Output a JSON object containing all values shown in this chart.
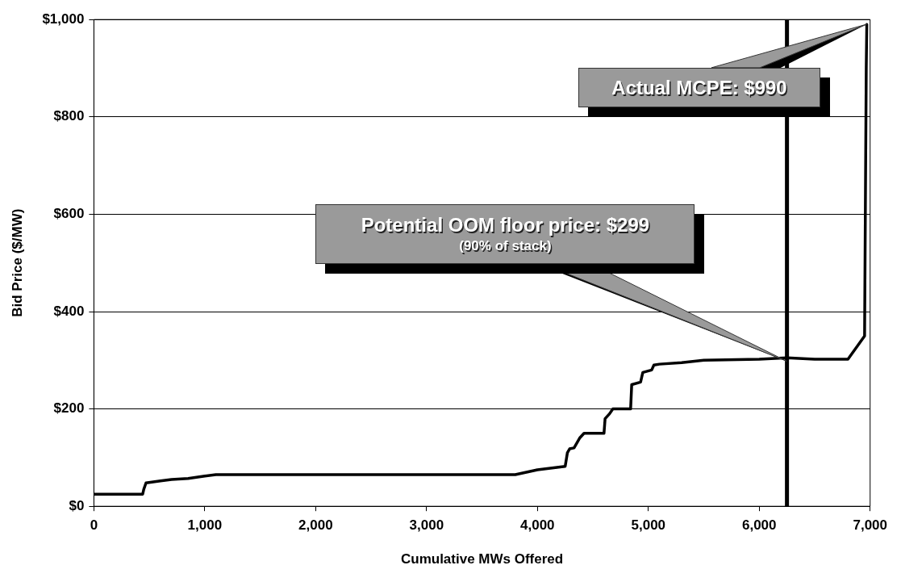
{
  "chart_data": {
    "type": "line",
    "xlabel": "Cumulative MWs Offered",
    "ylabel": "Bid Price ($/MW)",
    "series": [
      {
        "color": "#000000",
        "x": [
          0,
          440,
          450,
          470,
          600,
          700,
          850,
          1000,
          1100,
          1500,
          2500,
          3800,
          4000,
          4250,
          4270,
          4290,
          4330,
          4380,
          4420,
          4600,
          4610,
          4650,
          4680,
          4840,
          4850,
          4930,
          4950,
          5030,
          5050,
          5100,
          5300,
          5500,
          6000,
          6250,
          6500,
          6800,
          6950,
          6965,
          6970
        ],
        "values": [
          25,
          25,
          35,
          48,
          52,
          55,
          57,
          62,
          65,
          65,
          65,
          65,
          75,
          82,
          110,
          118,
          120,
          140,
          150,
          150,
          180,
          190,
          200,
          200,
          250,
          255,
          275,
          280,
          290,
          292,
          295,
          300,
          302,
          305,
          302,
          302,
          350,
          900,
          990
        ]
      }
    ],
    "xlim": [
      0,
      7000
    ],
    "xticks": [
      {
        "value": 0,
        "label": "0"
      },
      {
        "value": 1000,
        "label": "1,000"
      },
      {
        "value": 2000,
        "label": "2,000"
      },
      {
        "value": 3000,
        "label": "3,000"
      },
      {
        "value": 4000,
        "label": "4,000"
      },
      {
        "value": 5000,
        "label": "5,000"
      },
      {
        "value": 6000,
        "label": "6,000"
      },
      {
        "value": 7000,
        "label": "7,000"
      }
    ],
    "ylim": [
      0,
      1000
    ],
    "yticks": [
      {
        "value": 0,
        "label": "$0"
      },
      {
        "value": 200,
        "label": "$200"
      },
      {
        "value": 400,
        "label": "$400"
      },
      {
        "value": 600,
        "label": "$600"
      },
      {
        "value": 800,
        "label": "$800"
      },
      {
        "value": 1000,
        "label": "$1,000"
      }
    ],
    "grid": "y",
    "legend": false,
    "marker": "none",
    "line_style": "solid",
    "ref_lines": [
      {
        "axis": "x",
        "value": 6250,
        "color": "#000000"
      }
    ],
    "annotations": [
      {
        "text": "Actual MCPE: $990",
        "x": 6970,
        "y": 990
      },
      {
        "text": "Potential OOM floor price: $299\n(90% of stack)",
        "x": 6250,
        "y": 299
      }
    ]
  }
}
